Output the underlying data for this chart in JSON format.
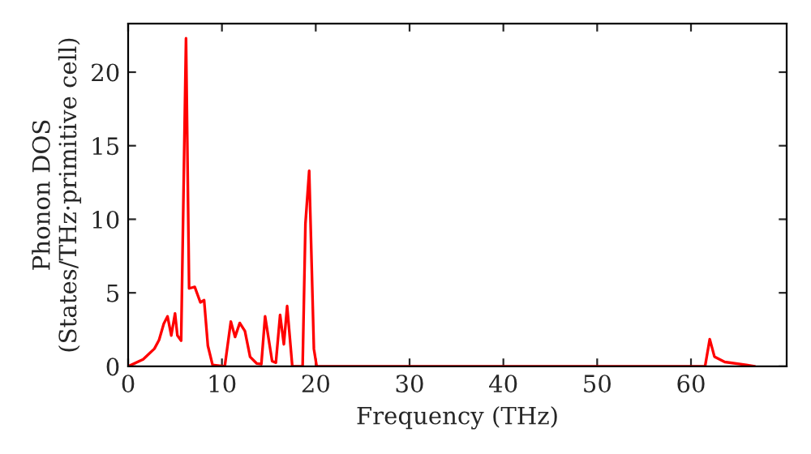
{
  "chart_data": {
    "type": "line",
    "xlabel": "Frequency (THz)",
    "ylabel": "Phonon DOS\n(States/THz·primitive cell)",
    "xlim": [
      0,
      70.2
    ],
    "ylim": [
      0,
      23.3
    ],
    "xticks": [
      0,
      10,
      20,
      30,
      40,
      50,
      60
    ],
    "yticks": [
      0,
      5,
      10,
      15,
      20
    ],
    "grid": false,
    "legend": false,
    "series": [
      {
        "color": "#ff0000",
        "x": [
          0,
          1.6,
          2.8,
          3.3,
          3.8,
          4.2,
          4.6,
          5.0,
          5.25,
          5.65,
          6.17,
          6.5,
          7.1,
          7.7,
          8.1,
          8.5,
          9.0,
          10.3,
          10.95,
          11.4,
          11.9,
          12.45,
          13.0,
          13.7,
          14.2,
          14.6,
          15.35,
          15.75,
          16.2,
          16.6,
          16.95,
          17.5,
          18.6,
          18.9,
          19.3,
          19.8,
          20.1,
          61.5,
          62.0,
          62.5,
          63.6,
          65.9,
          66.8
        ],
        "values": [
          0,
          0.48,
          1.2,
          1.8,
          2.9,
          3.4,
          2.1,
          3.6,
          2.1,
          1.75,
          22.3,
          5.3,
          5.4,
          4.35,
          4.5,
          1.4,
          0.1,
          0,
          3.05,
          2.0,
          2.95,
          2.4,
          0.65,
          0.2,
          0.15,
          3.4,
          0.35,
          0.25,
          3.5,
          1.5,
          4.1,
          0,
          0,
          9.7,
          13.3,
          1.2,
          0,
          0,
          1.85,
          0.66,
          0.3,
          0.1,
          0
        ]
      }
    ]
  }
}
